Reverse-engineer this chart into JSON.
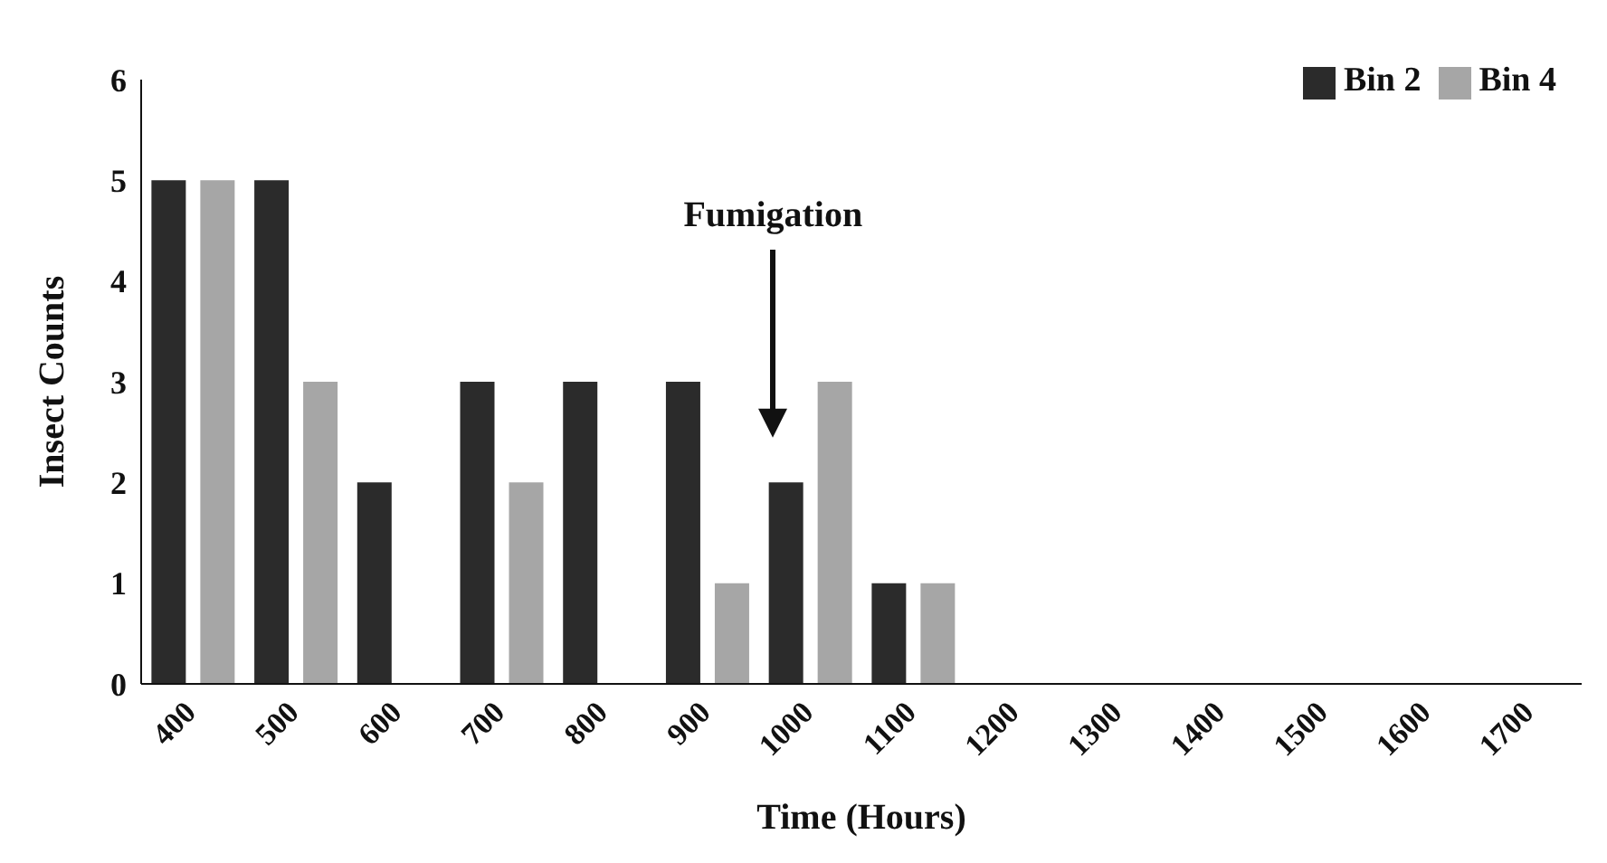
{
  "chart_data": {
    "type": "bar",
    "xlabel": "Time (Hours)",
    "ylabel": "Insect Counts",
    "categories": [
      "400",
      "500",
      "600",
      "700",
      "800",
      "900",
      "1000",
      "1100",
      "1200",
      "1300",
      "1400",
      "1500",
      "1600",
      "1700"
    ],
    "series": [
      {
        "name": "Bin 2",
        "color": "#2b2b2b",
        "values": [
          5,
          5,
          2,
          3,
          3,
          3,
          2,
          1,
          0,
          0,
          0,
          0,
          0,
          0
        ]
      },
      {
        "name": "Bin 4",
        "color": "#a6a6a6",
        "values": [
          5,
          3,
          0,
          2,
          0,
          1,
          3,
          1,
          0,
          0,
          0,
          0,
          0,
          0
        ]
      }
    ],
    "ylim": [
      0,
      6
    ],
    "yticks": [
      0,
      1,
      2,
      3,
      4,
      5,
      6
    ],
    "grid": false,
    "legend": "top right",
    "annotations": [
      "Fumigation"
    ]
  }
}
